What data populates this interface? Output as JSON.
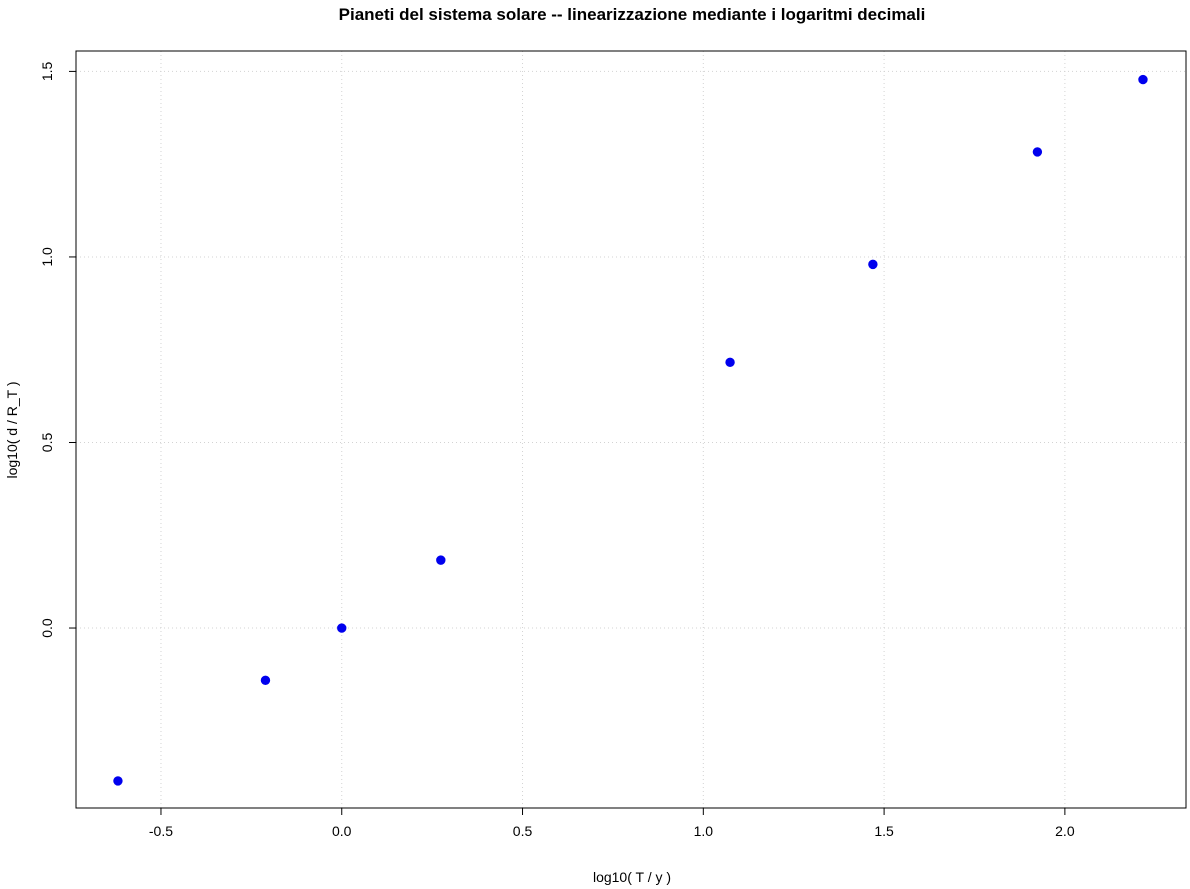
{
  "chart_data": {
    "type": "scatter",
    "title": "Pianeti del sistema solare -- linearizzazione mediante i logaritmi decimali",
    "xlabel": "log10( T / y )",
    "ylabel": "log10( d / R_T )",
    "xlim": [
      -0.735,
      2.335
    ],
    "ylim": [
      -0.485,
      1.555
    ],
    "xticks": [
      -0.5,
      0.0,
      0.5,
      1.0,
      1.5,
      2.0
    ],
    "xtick_labels": [
      "-0.5",
      "0.0",
      "0.5",
      "1.0",
      "1.5",
      "2.0"
    ],
    "yticks": [
      0.0,
      0.5,
      1.0,
      1.5
    ],
    "ytick_labels": [
      "0.0",
      "0.5",
      "1.0",
      "1.5"
    ],
    "grid": true,
    "point_color": "#0000ee",
    "points": [
      {
        "x": -0.619,
        "y": -0.412
      },
      {
        "x": -0.211,
        "y": -0.141
      },
      {
        "x": 0.0,
        "y": 0.0
      },
      {
        "x": 0.274,
        "y": 0.183
      },
      {
        "x": 1.074,
        "y": 0.716
      },
      {
        "x": 1.469,
        "y": 0.98
      },
      {
        "x": 1.924,
        "y": 1.283
      },
      {
        "x": 2.216,
        "y": 1.478
      }
    ]
  }
}
